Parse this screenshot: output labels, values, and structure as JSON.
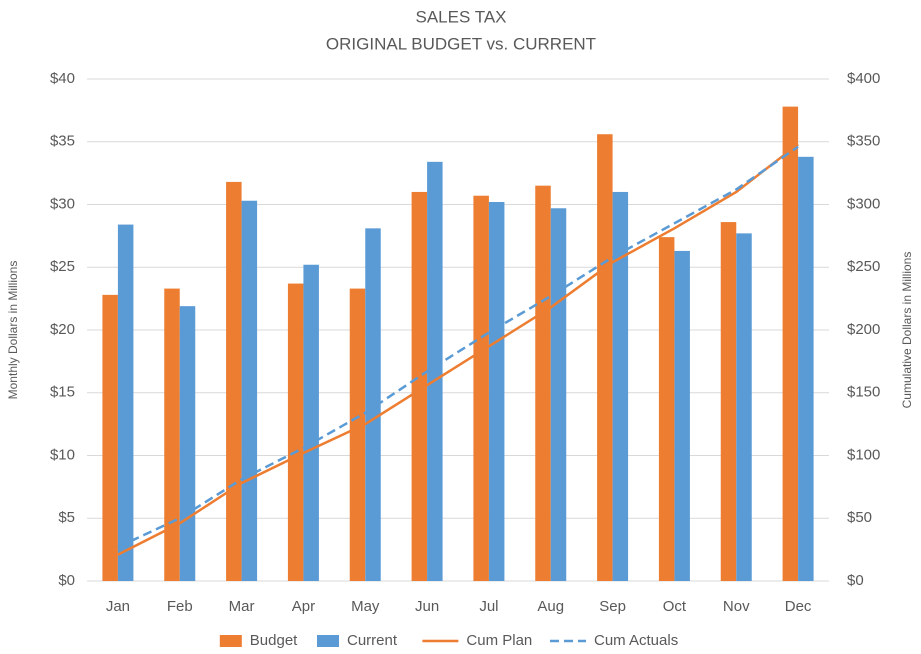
{
  "chart_data": {
    "type": "bar",
    "title": "SALES TAX",
    "subtitle": "ORIGINAL BUDGET vs. CURRENT",
    "y_label": "Monthly  Dollars in Millions",
    "y2_label": "Cumulative Dollars in Millions",
    "categories": [
      "Jan",
      "Feb",
      "Mar",
      "Apr",
      "May",
      "Jun",
      "Jul",
      "Aug",
      "Sep",
      "Oct",
      "Nov",
      "Dec"
    ],
    "series": [
      {
        "name": "Budget",
        "type": "bar",
        "color": "#ed7d31",
        "values": [
          22.8,
          23.3,
          31.8,
          23.7,
          23.3,
          31.0,
          30.7,
          31.5,
          35.6,
          27.4,
          28.6,
          37.8
        ]
      },
      {
        "name": "Current",
        "type": "bar",
        "color": "#5b9bd5",
        "values": [
          28.4,
          21.9,
          30.3,
          25.2,
          28.1,
          33.4,
          30.2,
          29.7,
          31.0,
          26.3,
          27.7,
          33.8
        ]
      },
      {
        "name": "Cum Plan",
        "type": "line",
        "axis": "y2",
        "color": "#ed7d31",
        "dashed": false,
        "values": [
          21,
          46,
          78,
          102,
          125,
          156,
          187,
          218,
          254,
          281,
          310,
          348
        ]
      },
      {
        "name": "Cum Actuals",
        "type": "line",
        "axis": "y2",
        "color": "#5b9bd5",
        "dashed": true,
        "values": [
          27,
          50,
          81,
          106,
          134,
          167,
          198,
          227,
          258,
          285,
          312,
          346
        ]
      }
    ],
    "ylim": [
      0,
      40
    ],
    "yticks": [
      {
        "value": 0,
        "label": "$0"
      },
      {
        "value": 5,
        "label": "$5"
      },
      {
        "value": 10,
        "label": "$10"
      },
      {
        "value": 15,
        "label": "$15"
      },
      {
        "value": 20,
        "label": "$20"
      },
      {
        "value": 25,
        "label": "$25"
      },
      {
        "value": 30,
        "label": "$30"
      },
      {
        "value": 35,
        "label": "$35"
      },
      {
        "value": 40,
        "label": "$40"
      }
    ],
    "y2lim": [
      0,
      400
    ],
    "y2ticks": [
      {
        "value": 0,
        "label": "$0"
      },
      {
        "value": 50,
        "label": "$50"
      },
      {
        "value": 100,
        "label": "$100"
      },
      {
        "value": 150,
        "label": "$150"
      },
      {
        "value": 200,
        "label": "$200"
      },
      {
        "value": 250,
        "label": "$250"
      },
      {
        "value": 300,
        "label": "$300"
      },
      {
        "value": 350,
        "label": "$350"
      },
      {
        "value": 400,
        "label": "$400"
      }
    ],
    "grid": true,
    "legend": "bottom"
  }
}
